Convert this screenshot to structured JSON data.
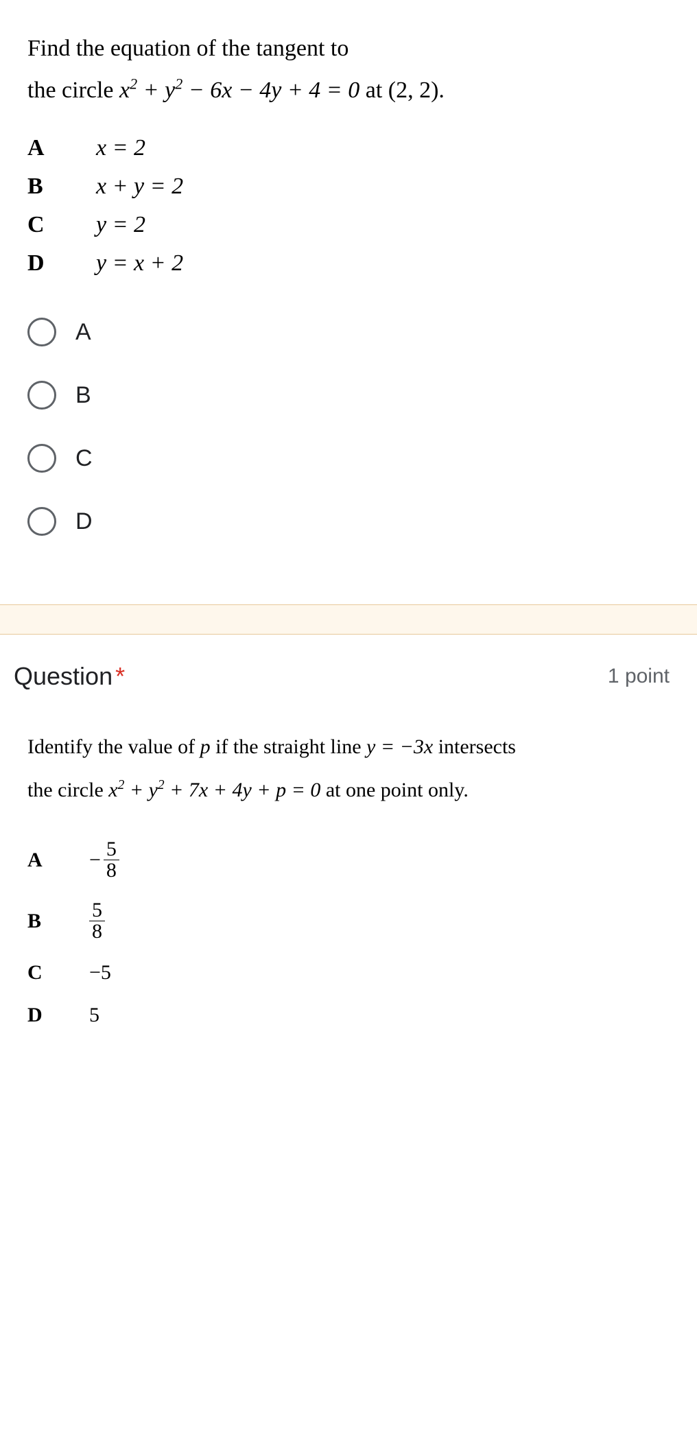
{
  "q1": {
    "problem_line1": "Find the equation of the tangent to",
    "problem_line2_pre": "the circle  ",
    "problem_eq": "x² + y² − 6x − 4y + 4 = 0",
    "problem_line2_post": "  at  (2, 2).",
    "choices": [
      {
        "letter": "A",
        "value": "x = 2"
      },
      {
        "letter": "B",
        "value": "x + y = 2"
      },
      {
        "letter": "C",
        "value": "y = 2"
      },
      {
        "letter": "D",
        "value": "y = x + 2"
      }
    ],
    "radio_options": [
      "A",
      "B",
      "C",
      "D"
    ]
  },
  "q2": {
    "header": "Question",
    "required": "*",
    "points": "1 point",
    "problem_line1_pre": "Identify the value of ",
    "problem_line1_var": "p",
    "problem_line1_mid": " if the straight line  ",
    "problem_line1_eq": "y = −3x",
    "problem_line1_post": "  intersects",
    "problem_line2_pre": "the circle  ",
    "problem_line2_eq": "x² + y² + 7x + 4y + p = 0",
    "problem_line2_post": "   at one point only.",
    "choices": [
      {
        "letter": "A",
        "num": "5",
        "den": "8",
        "neg": true
      },
      {
        "letter": "B",
        "num": "5",
        "den": "8",
        "neg": false
      },
      {
        "letter": "C",
        "value": "−5"
      },
      {
        "letter": "D",
        "value": "5"
      }
    ]
  },
  "colors": {
    "divider_bg": "#fef7ec",
    "required": "#d93025",
    "text_muted": "#5f6368"
  }
}
